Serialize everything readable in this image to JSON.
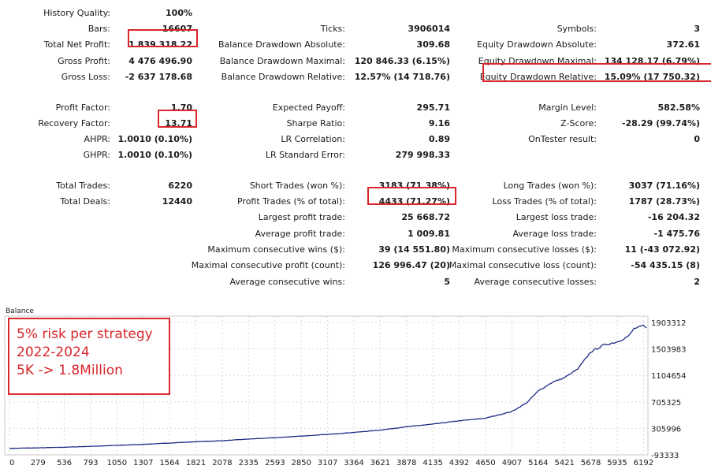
{
  "report": {
    "col1": [
      {
        "label": "History Quality:",
        "value": "100%"
      },
      {
        "label": "Bars:",
        "value": "16607"
      },
      {
        "label": "Total Net Profit:",
        "value": "1 839 318.22"
      },
      {
        "label": "Gross Profit:",
        "value": "4 476 496.90"
      },
      {
        "label": "Gross Loss:",
        "value": "-2 637 178.68"
      },
      {
        "label": "Profit Factor:",
        "value": "1.70"
      },
      {
        "label": "Recovery Factor:",
        "value": "13.71"
      },
      {
        "label": "AHPR:",
        "value": "1.0010 (0.10%)"
      },
      {
        "label": "GHPR:",
        "value": "1.0010 (0.10%)"
      },
      {
        "label": "Total Trades:",
        "value": "6220"
      },
      {
        "label": "Total Deals:",
        "value": "12440"
      }
    ],
    "col2": [
      {
        "label": "Ticks:",
        "value": "3906014"
      },
      {
        "label": "Balance Drawdown Absolute:",
        "value": "309.68"
      },
      {
        "label": "Balance Drawdown Maximal:",
        "value": "120 846.33 (6.15%)"
      },
      {
        "label": "Balance Drawdown Relative:",
        "value": "12.57% (14 718.76)"
      },
      {
        "label": "Expected Payoff:",
        "value": "295.71"
      },
      {
        "label": "Sharpe Ratio:",
        "value": "9.16"
      },
      {
        "label": "LR Correlation:",
        "value": "0.89"
      },
      {
        "label": "LR Standard Error:",
        "value": "279 998.33"
      },
      {
        "label": "Short Trades (won %):",
        "value": "3183 (71.38%)"
      },
      {
        "label": "Profit Trades (% of total):",
        "value": "4433 (71.27%)"
      },
      {
        "label": "Largest profit trade:",
        "value": "25 668.72"
      },
      {
        "label": "Average profit trade:",
        "value": "1 009.81"
      },
      {
        "label": "Maximum consecutive wins ($):",
        "value": "39 (14 551.80)"
      },
      {
        "label": "Maximal consecutive profit (count):",
        "value": "126 996.47 (20)"
      },
      {
        "label": "Average consecutive wins:",
        "value": "5"
      }
    ],
    "col3": [
      {
        "label": "Symbols:",
        "value": "3"
      },
      {
        "label": "Equity Drawdown Absolute:",
        "value": "372.61"
      },
      {
        "label": "Equity Drawdown Maximal:",
        "value": "134 128.17 (6.79%)"
      },
      {
        "label": "Equity Drawdown Relative:",
        "value": "15.09% (17 750.32)"
      },
      {
        "label": "Margin Level:",
        "value": "582.58%"
      },
      {
        "label": "Z-Score:",
        "value": "-28.29 (99.74%)"
      },
      {
        "label": "OnTester result:",
        "value": "0"
      },
      {
        "label": "Long Trades (won %):",
        "value": "3037 (71.16%)"
      },
      {
        "label": "Loss Trades (% of total):",
        "value": "1787 (28.73%)"
      },
      {
        "label": "Largest loss trade:",
        "value": "-16 204.32"
      },
      {
        "label": "Average loss trade:",
        "value": "-1 475.76"
      },
      {
        "label": "Maximum consecutive losses ($):",
        "value": "11 (-43 072.92)"
      },
      {
        "label": "Maximal consecutive loss (count):",
        "value": "-54 435.15 (8)"
      },
      {
        "label": "Average consecutive losses:",
        "value": "2"
      }
    ]
  },
  "annotation": {
    "line1": "5% risk per strategy",
    "line2": "2022-2024",
    "line3": "5K -> 1.8Million"
  },
  "colors": {
    "highlight": "#d8262b",
    "balance_line": "#1f2a86",
    "annotation_text": "#d8262b"
  },
  "chart_data": {
    "type": "line",
    "title": "Balance",
    "xlabel": "",
    "ylabel": "",
    "x_ticks": [
      "0",
      "279",
      "536",
      "793",
      "1050",
      "1307",
      "1564",
      "1821",
      "2078",
      "2335",
      "2593",
      "2850",
      "3107",
      "3364",
      "3621",
      "3878",
      "4135",
      "4392",
      "4650",
      "4907",
      "5164",
      "5421",
      "5678",
      "5935",
      "6192"
    ],
    "y_ticks": [
      "1903312",
      "1503983",
      "1104654",
      "705325",
      "305996",
      "-93333"
    ],
    "xlim": [
      0,
      6220
    ],
    "ylim": [
      -93333,
      1903312
    ],
    "grid": true,
    "series": [
      {
        "x": [
          0,
          279,
          536,
          793,
          1050,
          1307,
          1564,
          1821,
          2078,
          2335,
          2593,
          2850,
          3107,
          3364,
          3621,
          3878,
          4135,
          4392,
          4650,
          4907,
          5050,
          5164,
          5300,
          5421,
          5550,
          5678,
          5800,
          5935,
          6050,
          6100,
          6192,
          6220
        ],
        "y": [
          5000,
          12000,
          22000,
          35000,
          50000,
          65000,
          85000,
          105000,
          120000,
          145000,
          165000,
          190000,
          215000,
          245000,
          280000,
          330000,
          370000,
          420000,
          460000,
          560000,
          690000,
          870000,
          1000000,
          1070000,
          1200000,
          1460000,
          1560000,
          1610000,
          1700000,
          1810000,
          1850000,
          1820000
        ]
      }
    ]
  }
}
